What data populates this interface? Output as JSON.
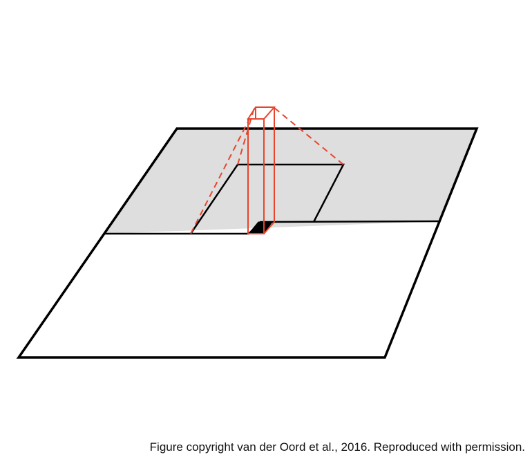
{
  "caption": "Figure copyright van der Oord et al., 2016. Reproduced with permission.",
  "colors": {
    "plane_outline": "#000000",
    "context_fill": "#dedede",
    "receptive_field_box": "#e8442c",
    "current_pixel": "#000000",
    "background": "#ffffff"
  }
}
